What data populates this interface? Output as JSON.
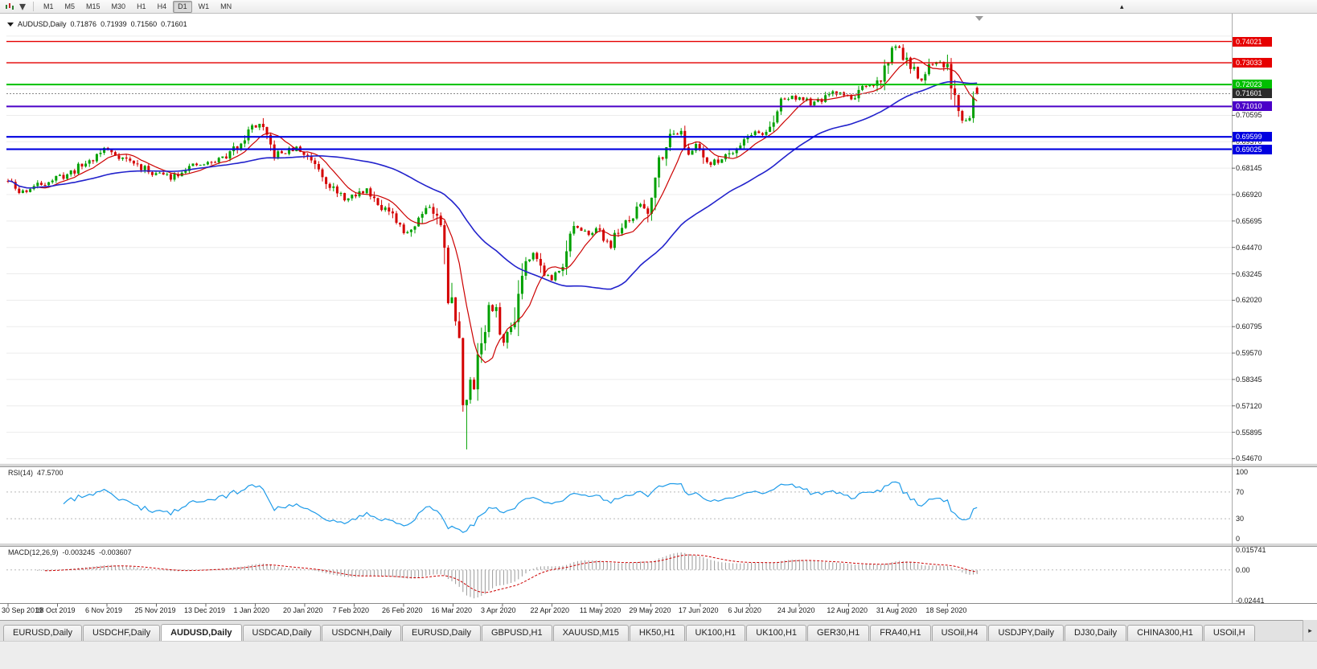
{
  "toolbar": {
    "timeframes": [
      "M1",
      "M5",
      "M15",
      "M30",
      "H1",
      "H4",
      "D1",
      "W1",
      "MN"
    ],
    "active": "D1",
    "dropdown_icon": "▾",
    "right_marker": "▴"
  },
  "header": {
    "symbol": "AUDUSD,Daily",
    "open": "0.71876",
    "high": "0.71939",
    "low": "0.71560",
    "close": "0.71601"
  },
  "rsi": {
    "name": "RSI(14)",
    "value": "47.5700",
    "axis": [
      {
        "label": "100",
        "v": 100
      },
      {
        "label": "70",
        "v": 70
      },
      {
        "label": "30",
        "v": 30
      },
      {
        "label": "0",
        "v": 0
      }
    ],
    "levels": [
      70,
      30
    ]
  },
  "macd": {
    "name": "MACD(12,26,9)",
    "main": "-0.003245",
    "signal": "-0.003607",
    "axis": [
      {
        "label": "0.015741",
        "v": 0.015741
      },
      {
        "label": "0.00",
        "v": 0
      },
      {
        "label": "-0.02441",
        "v": -0.02441
      }
    ]
  },
  "tabs": {
    "scroll_icon": "▸",
    "items": [
      {
        "label": "EURUSD,Daily"
      },
      {
        "label": "USDCHF,Daily"
      },
      {
        "label": "AUDUSD,Daily",
        "active": true
      },
      {
        "label": "USDCAD,Daily"
      },
      {
        "label": "USDCNH,Daily"
      },
      {
        "label": "EURUSD,Daily"
      },
      {
        "label": "GBPUSD,H1"
      },
      {
        "label": "XAUUSD,M15"
      },
      {
        "label": "HK50,H1"
      },
      {
        "label": "UK100,H1"
      },
      {
        "label": "UK100,H1"
      },
      {
        "label": "GER30,H1"
      },
      {
        "label": "FRA40,H1"
      },
      {
        "label": "USOil,H4"
      },
      {
        "label": "USDJPY,Daily"
      },
      {
        "label": "DJ30,Daily"
      },
      {
        "label": "CHINA300,H1"
      },
      {
        "label": "USOil,H"
      }
    ]
  },
  "chart_data": {
    "type": "candlestick",
    "symbol": "AUDUSD",
    "timeframe": "Daily",
    "bars": 263,
    "seed": 11,
    "price_axis": {
      "max": 0.752,
      "min": 0.545,
      "tick_step": 0.01225,
      "tick_base": 0.5467,
      "tick_labels": [
        "0.70595",
        "0.69370",
        "0.68145",
        "0.66920",
        "0.65695",
        "0.64470",
        "0.63245",
        "0.62020",
        "0.60795",
        "0.59570",
        "0.58345",
        "0.57120",
        "0.55895",
        "0.54670"
      ]
    },
    "date_labels": [
      "30 Sep 2019",
      "18 Oct 2019",
      "6 Nov 2019",
      "25 Nov 2019",
      "13 Dec 2019",
      "1 Jan 2020",
      "20 Jan 2020",
      "7 Feb 2020",
      "26 Feb 2020",
      "16 Mar 2020",
      "3 Apr 2020",
      "22 Apr 2020",
      "11 May 2020",
      "29 May 2020",
      "17 Jun 2020",
      "6 Jul 2020",
      "24 Jul 2020",
      "12 Aug 2020",
      "31 Aug 2020",
      "18 Sep 2020"
    ],
    "horizontal_lines": [
      {
        "price": 0.74021,
        "label": "0.74021",
        "color": "#e60000",
        "width": 1.4
      },
      {
        "price": 0.73033,
        "label": "0.73033",
        "color": "#e60000",
        "width": 1.4
      },
      {
        "price": 0.72023,
        "label": "0.72023",
        "color": "#00c000",
        "width": 2
      },
      {
        "price": 0.7101,
        "label": "0.71010",
        "color": "#4a00c8",
        "width": 2
      },
      {
        "price": 0.69599,
        "label": "0.69599",
        "color": "#0000e0",
        "width": 2.2
      },
      {
        "price": 0.69025,
        "label": "0.69025",
        "color": "#0000e0",
        "width": 2.2
      }
    ],
    "current_price": {
      "price": 0.71601,
      "label": "0.71601",
      "box_color": "#2b2b2b"
    },
    "anchors": [
      [
        0,
        0.6755
      ],
      [
        3,
        0.67
      ],
      [
        10,
        0.675
      ],
      [
        16,
        0.6785
      ],
      [
        23,
        0.686
      ],
      [
        26,
        0.6905
      ],
      [
        32,
        0.6855
      ],
      [
        38,
        0.68
      ],
      [
        44,
        0.6775
      ],
      [
        48,
        0.6815
      ],
      [
        55,
        0.684
      ],
      [
        60,
        0.688
      ],
      [
        66,
        0.7005
      ],
      [
        68,
        0.7015
      ],
      [
        72,
        0.6875
      ],
      [
        78,
        0.6905
      ],
      [
        83,
        0.6845
      ],
      [
        89,
        0.669
      ],
      [
        92,
        0.667
      ],
      [
        97,
        0.6715
      ],
      [
        102,
        0.6625
      ],
      [
        107,
        0.6515
      ],
      [
        110,
        0.655
      ],
      [
        112,
        0.6625
      ],
      [
        114,
        0.664
      ],
      [
        116,
        0.658
      ],
      [
        118,
        0.649
      ],
      [
        119,
        0.623
      ],
      [
        121,
        0.612
      ],
      [
        122,
        0.599
      ],
      [
        123,
        0.577
      ],
      [
        124,
        0.574
      ],
      [
        125,
        0.58
      ],
      [
        126,
        0.583
      ],
      [
        127,
        0.596
      ],
      [
        129,
        0.607
      ],
      [
        130,
        0.617
      ],
      [
        132,
        0.6135
      ],
      [
        134,
        0.6
      ],
      [
        136,
        0.6085
      ],
      [
        138,
        0.623
      ],
      [
        139,
        0.635
      ],
      [
        142,
        0.6435
      ],
      [
        144,
        0.6355
      ],
      [
        147,
        0.629
      ],
      [
        150,
        0.639
      ],
      [
        153,
        0.655
      ],
      [
        155,
        0.651
      ],
      [
        159,
        0.653
      ],
      [
        163,
        0.646
      ],
      [
        165,
        0.653
      ],
      [
        168,
        0.6565
      ],
      [
        171,
        0.665
      ],
      [
        173,
        0.6615
      ],
      [
        175,
        0.68
      ],
      [
        178,
        0.694
      ],
      [
        180,
        0.697
      ],
      [
        182,
        0.7
      ],
      [
        184,
        0.686
      ],
      [
        186,
        0.693
      ],
      [
        190,
        0.683
      ],
      [
        196,
        0.69
      ],
      [
        201,
        0.698
      ],
      [
        204,
        0.6975
      ],
      [
        207,
        0.701
      ],
      [
        209,
        0.7135
      ],
      [
        213,
        0.7145
      ],
      [
        218,
        0.711
      ],
      [
        222,
        0.7155
      ],
      [
        226,
        0.7165
      ],
      [
        228,
        0.713
      ],
      [
        230,
        0.7175
      ],
      [
        234,
        0.719
      ],
      [
        236,
        0.7235
      ],
      [
        239,
        0.7365
      ],
      [
        241,
        0.738
      ],
      [
        242,
        0.734
      ],
      [
        244,
        0.728
      ],
      [
        247,
        0.7215
      ],
      [
        248,
        0.7265
      ],
      [
        252,
        0.7305
      ],
      [
        254,
        0.729
      ],
      [
        255,
        0.722
      ],
      [
        257,
        0.7075
      ],
      [
        258,
        0.705
      ],
      [
        259,
        0.703
      ],
      [
        260,
        0.7075
      ],
      [
        261,
        0.7135
      ],
      [
        262,
        0.716
      ]
    ],
    "low_spike": {
      "bar": 124,
      "low": 0.551
    },
    "last_candle": {
      "open": 0.71876,
      "high": 0.71939,
      "low": 0.7156,
      "close": 0.71601
    },
    "ma": {
      "fast_period": 9,
      "slow_period": 45
    },
    "indicators": {
      "rsi_period": 14,
      "macd": [
        12,
        26,
        9
      ]
    },
    "colors": {
      "up": "#00a000",
      "down": "#d40000",
      "ma_fast": "#cc0000",
      "ma_slow": "#2222cc",
      "rsi": "#1e9be9",
      "rsi_level": "#b8b8b8",
      "macd_hist": "#9a9a9a",
      "macd_signal": "#cc0000",
      "grid": "#ececec",
      "axis_text": "#1a1a1a"
    }
  }
}
